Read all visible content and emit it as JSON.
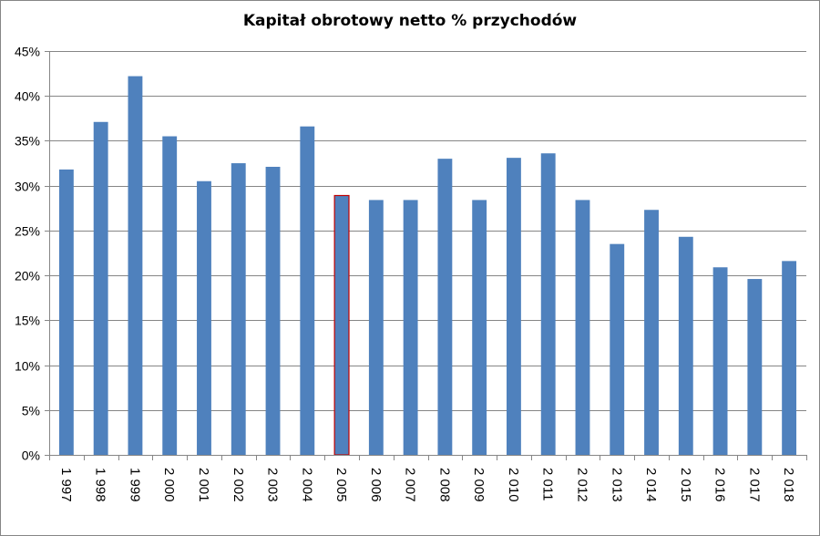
{
  "chart_data": {
    "type": "bar",
    "title": "Kapitał obrotowy netto % przychodów",
    "xlabel": "",
    "ylabel": "",
    "ylim": [
      0,
      45
    ],
    "ytick_step": 5,
    "ytick_suffix": "%",
    "grid": true,
    "legend": "none",
    "categories": [
      "1 997",
      "1 998",
      "1 999",
      "2 000",
      "2 001",
      "2 002",
      "2 003",
      "2 004",
      "2 005",
      "2 006",
      "2 007",
      "2 008",
      "2 009",
      "2 010",
      "2 011",
      "2 012",
      "2 013",
      "2 014",
      "2 015",
      "2 016",
      "2 017",
      "2 018"
    ],
    "values": [
      31.8,
      37.1,
      42.2,
      35.5,
      30.5,
      32.5,
      32.1,
      36.6,
      28.9,
      28.4,
      28.4,
      33.0,
      28.4,
      33.1,
      33.6,
      28.4,
      23.5,
      27.3,
      24.3,
      20.9,
      19.6,
      21.6
    ],
    "highlight_index": 8,
    "colors": {
      "bar": "#4f81bd",
      "highlight_outline": "#c00000",
      "grid": "#868686"
    }
  }
}
